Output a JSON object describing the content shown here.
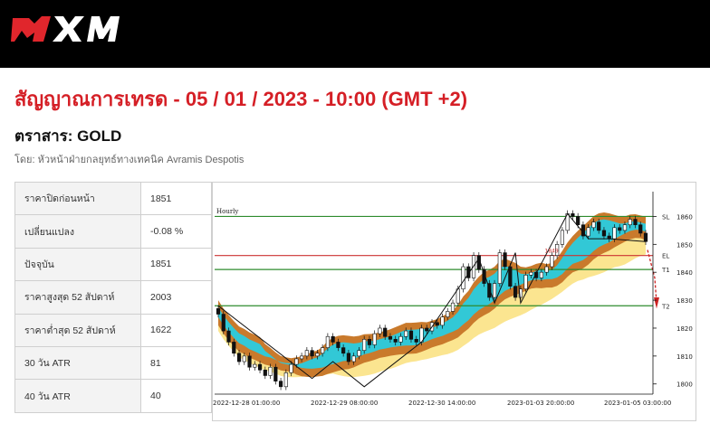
{
  "header": {
    "brand": "XM",
    "colors": {
      "bar": "#000000",
      "logo_red": "#e0262c",
      "logo_white": "#ffffff"
    }
  },
  "signal": {
    "title": "สัญญาณการเทรด - 05 / 01 / 2023 - 10:00 (GMT +2)",
    "instrument": "ตราสาร: GOLD",
    "author": "โดย: หัวหน้าฝ่ายกลยุทธ์ทางเทคนิค Avramis Despotis",
    "title_color": "#d51f26"
  },
  "stats": [
    {
      "label": "ราคาปิดก่อนหน้า",
      "value": "1851"
    },
    {
      "label": "เปลี่ยนแปลง",
      "value": "-0.08 %"
    },
    {
      "label": "ปัจจุบัน",
      "value": "1851"
    },
    {
      "label": "ราคาสูงสุด 52 สัปดาห์",
      "value": "2003"
    },
    {
      "label": "ราคาต่ำสุด 52 สัปดาห์",
      "value": "1622"
    },
    {
      "label": "30 วัน ATR",
      "value": "81"
    },
    {
      "label": "40 วัน ATR",
      "value": "40"
    }
  ],
  "chart_data": {
    "type": "candlestick",
    "timeframe_label": "Hourly",
    "ylim": [
      1797,
      1865
    ],
    "y_ticks": [
      1800,
      1810,
      1820,
      1830,
      1840,
      1850,
      1860
    ],
    "x_ticks": [
      "2022-12-28 01:00:00",
      "2022-12-29 08:00:00",
      "2022-12-30 14:00:00",
      "2023-01-03 20:00:00",
      "2023-01-05 03:00:00"
    ],
    "levels": [
      {
        "name": "SL",
        "value": 1860,
        "color": "#2e8b2e"
      },
      {
        "name": "EL",
        "value": 1846,
        "color": "#cc3333"
      },
      {
        "name": "T1",
        "value": 1841,
        "color": "#2e8b2e"
      },
      {
        "name": "T2",
        "value": 1828,
        "color": "#2e8b2e"
      }
    ],
    "inline_label": "1849",
    "close_series": [
      1825,
      1819,
      1815,
      1811,
      1808,
      1810,
      1806,
      1807,
      1805,
      1803,
      1806,
      1801,
      1799,
      1804,
      1807,
      1809,
      1810,
      1812,
      1810,
      1811,
      1813,
      1817,
      1815,
      1813,
      1811,
      1808,
      1810,
      1812,
      1816,
      1814,
      1818,
      1820,
      1817,
      1816,
      1815,
      1817,
      1819,
      1816,
      1815,
      1820,
      1819,
      1822,
      1821,
      1824,
      1826,
      1829,
      1834,
      1842,
      1838,
      1846,
      1841,
      1836,
      1831,
      1836,
      1847,
      1842,
      1835,
      1831,
      1834,
      1839,
      1840,
      1838,
      1840,
      1842,
      1846,
      1850,
      1855,
      1861,
      1860,
      1857,
      1853,
      1856,
      1858,
      1855,
      1853,
      1852,
      1856,
      1855,
      1857,
      1859,
      1857,
      1854,
      1851
    ]
  }
}
